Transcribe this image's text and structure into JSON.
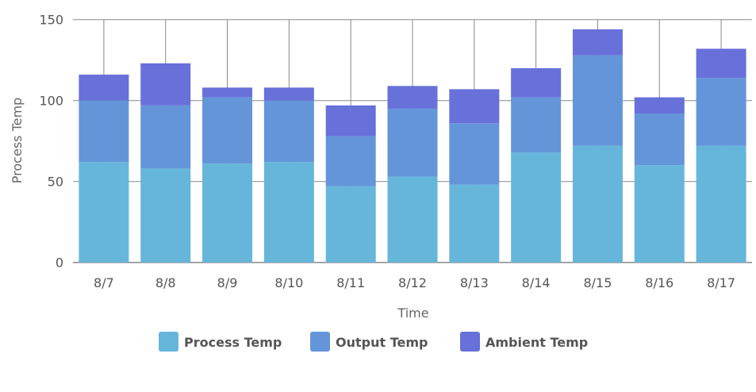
{
  "chart_data": {
    "type": "bar",
    "stacked": true,
    "title": "",
    "xlabel": "Time",
    "ylabel": "Process Temp",
    "ylim": [
      0,
      150
    ],
    "yticks": [
      0,
      50,
      100,
      150
    ],
    "grid": true,
    "legend_position": "bottom",
    "categories": [
      "8/7",
      "8/8",
      "8/9",
      "8/10",
      "8/11",
      "8/12",
      "8/13",
      "8/14",
      "8/15",
      "8/16",
      "8/17"
    ],
    "series": [
      {
        "name": "Process Temp",
        "color": "#66b6db",
        "values": [
          62,
          58,
          61,
          62,
          47,
          53,
          48,
          68,
          72,
          60,
          72
        ]
      },
      {
        "name": "Output Temp",
        "color": "#6595d9",
        "values": [
          38,
          39,
          41,
          38,
          31,
          42,
          38,
          34,
          56,
          32,
          42
        ]
      },
      {
        "name": "Ambient Temp",
        "color": "#6870da",
        "values": [
          16,
          26,
          6,
          8,
          19,
          14,
          21,
          18,
          16,
          10,
          18
        ]
      }
    ]
  }
}
